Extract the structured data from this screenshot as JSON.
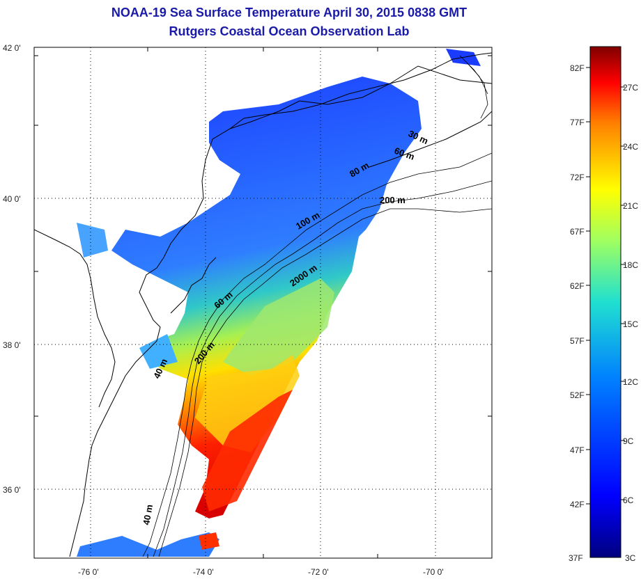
{
  "title_line1": "NOAA-19 Sea Surface Temperature April 30, 2015 0838 GMT",
  "title_line2": "Rutgers Coastal Ocean Observation Lab",
  "axes": {
    "lat_labels": [
      "42 0'",
      "40 0'",
      "38 0'",
      "36 0'"
    ],
    "lon_labels": [
      "-76 0'",
      "-74 0'",
      "-72 0'",
      "-70 0'"
    ]
  },
  "contours": {
    "labels": [
      "30 m",
      "60 m",
      "80 m",
      "200 m",
      "100 m",
      "2000 m",
      "60 m",
      "200 m",
      "40 m",
      "40 m"
    ]
  },
  "colorbar": {
    "f_labels": [
      "82F",
      "77F",
      "72F",
      "67F",
      "62F",
      "57F",
      "52F",
      "47F",
      "42F",
      "37F"
    ],
    "c_labels": [
      "27C",
      "24C",
      "21C",
      "18C",
      "15C",
      "12C",
      "9C",
      "6C",
      "3C"
    ]
  }
}
